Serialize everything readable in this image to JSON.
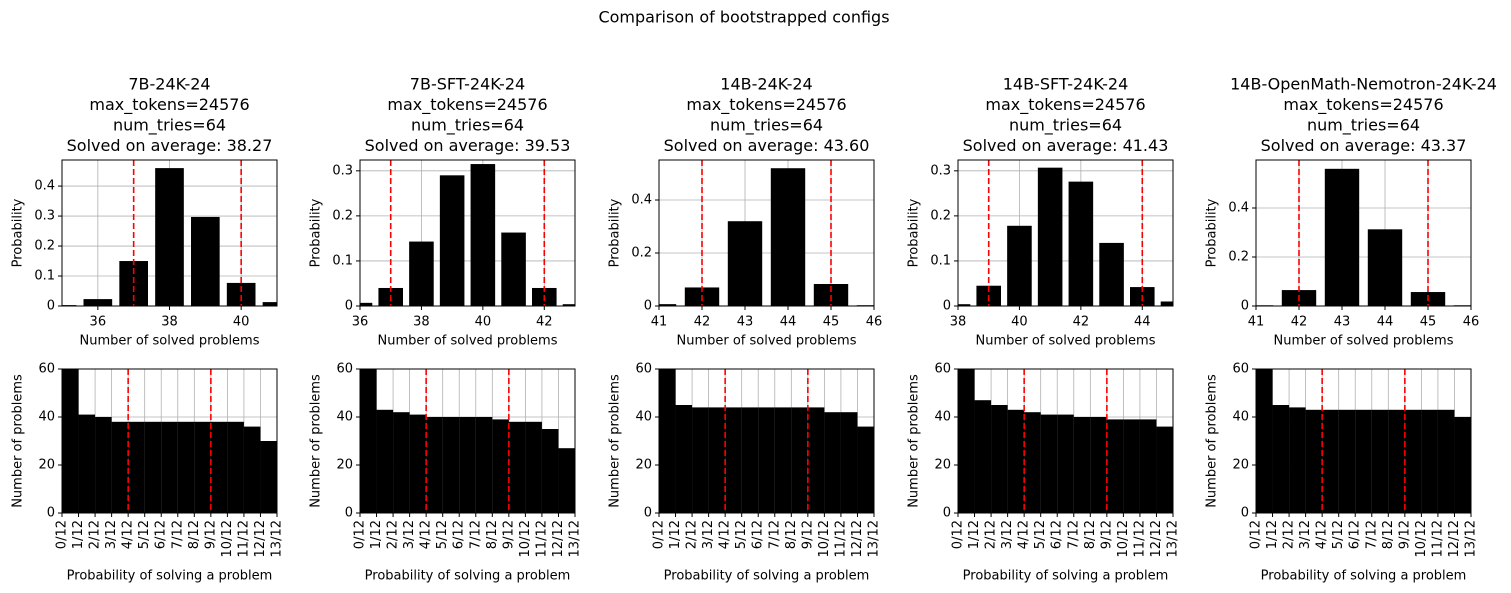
{
  "title": "Comparison of bootstrapped configs",
  "chart_data": [
    {
      "type": "bar",
      "title": [
        "7B-24K-24",
        "max_tokens=24576",
        "num_tries=64",
        "Solved on average: 38.27"
      ],
      "xlabel": "Number of solved problems",
      "ylabel": "Probability",
      "x": [
        35,
        36,
        37,
        38,
        39,
        40,
        41
      ],
      "values": [
        0.003,
        0.023,
        0.15,
        0.46,
        0.297,
        0.077,
        0.013
      ],
      "color": "#000000",
      "xlim": [
        35,
        41
      ],
      "xticks": [
        36,
        38,
        40
      ],
      "ylim": [
        0,
        0.487
      ],
      "yticks": [
        0.0,
        0.1,
        0.2,
        0.3,
        0.4
      ],
      "vlines": [
        37,
        40
      ],
      "vline_color": "#ff0000",
      "grid": true
    },
    {
      "type": "bar",
      "title": [
        "7B-SFT-24K-24",
        "max_tokens=24576",
        "num_tries=64",
        "Solved on average: 39.53"
      ],
      "xlabel": "Number of solved problems",
      "ylabel": "Probability",
      "x": [
        36,
        37,
        38,
        39,
        40,
        41,
        42,
        43
      ],
      "values": [
        0.007,
        0.04,
        0.143,
        0.29,
        0.315,
        0.163,
        0.04,
        0.004
      ],
      "color": "#000000",
      "xlim": [
        36,
        43
      ],
      "xticks": [
        36,
        38,
        40,
        42
      ],
      "ylim": [
        0,
        0.324
      ],
      "yticks": [
        0.0,
        0.1,
        0.2,
        0.3
      ],
      "vlines": [
        37,
        42
      ],
      "vline_color": "#ff0000",
      "grid": true
    },
    {
      "type": "bar",
      "title": [
        "14B-24K-24",
        "max_tokens=24576",
        "num_tries=64",
        "Solved on average: 43.60"
      ],
      "xlabel": "Number of solved problems",
      "ylabel": "Probability",
      "x": [
        41,
        42,
        43,
        44,
        45,
        46
      ],
      "values": [
        0.007,
        0.07,
        0.32,
        0.52,
        0.083,
        0.003
      ],
      "color": "#000000",
      "xlim": [
        41,
        46
      ],
      "xticks": [
        41,
        42,
        43,
        44,
        45,
        46
      ],
      "ylim": [
        0,
        0.551
      ],
      "yticks": [
        0.0,
        0.2,
        0.4
      ],
      "vlines": [
        42,
        45
      ],
      "vline_color": "#ff0000",
      "grid": true
    },
    {
      "type": "bar",
      "title": [
        "14B-SFT-24K-24",
        "max_tokens=24576",
        "num_tries=64",
        "Solved on average: 41.43"
      ],
      "xlabel": "Number of solved problems",
      "ylabel": "Probability",
      "x": [
        38,
        39,
        40,
        41,
        42,
        43,
        44,
        45
      ],
      "values": [
        0.004,
        0.045,
        0.178,
        0.307,
        0.276,
        0.14,
        0.042,
        0.01
      ],
      "color": "#000000",
      "xlim": [
        38,
        45
      ],
      "xticks": [
        38,
        40,
        42,
        44
      ],
      "ylim": [
        0,
        0.324
      ],
      "yticks": [
        0.0,
        0.1,
        0.2,
        0.3
      ],
      "vlines": [
        39,
        44
      ],
      "vline_color": "#ff0000",
      "grid": true
    },
    {
      "type": "bar",
      "title": [
        "14B-OpenMath-Nemotron-24K-24",
        "max_tokens=24576",
        "num_tries=64",
        "Solved on average: 43.37"
      ],
      "xlabel": "Number of solved problems",
      "ylabel": "Probability",
      "x": [
        41,
        42,
        43,
        44,
        45,
        46
      ],
      "values": [
        0.003,
        0.065,
        0.56,
        0.313,
        0.057,
        0.003
      ],
      "color": "#000000",
      "xlim": [
        41,
        46
      ],
      "xticks": [
        41,
        42,
        43,
        44,
        45,
        46
      ],
      "ylim": [
        0,
        0.596
      ],
      "yticks": [
        0.0,
        0.2,
        0.4
      ],
      "vlines": [
        42,
        45
      ],
      "vline_color": "#ff0000",
      "grid": true
    },
    {
      "type": "histogram",
      "xlabel": "Probability of solving a problem",
      "ylabel": "Number of problems",
      "bins": [
        0,
        1,
        2,
        3,
        4,
        5,
        6,
        7,
        8,
        9,
        10,
        11,
        12,
        13
      ],
      "values": [
        62,
        41,
        40,
        38,
        38,
        38,
        38,
        38,
        38,
        38,
        38,
        36,
        30
      ],
      "color": "#000000",
      "xlim": [
        0,
        13
      ],
      "xticks": [
        {
          "value": 0,
          "label": "0/12"
        },
        {
          "value": 1,
          "label": "1/12"
        },
        {
          "value": 2,
          "label": "2/12"
        },
        {
          "value": 3,
          "label": "3/12"
        },
        {
          "value": 4,
          "label": "4/12"
        },
        {
          "value": 5,
          "label": "5/12"
        },
        {
          "value": 6,
          "label": "6/12"
        },
        {
          "value": 7,
          "label": "7/12"
        },
        {
          "value": 8,
          "label": "8/12"
        },
        {
          "value": 9,
          "label": "9/12"
        },
        {
          "value": 10,
          "label": "10/12"
        },
        {
          "value": 11,
          "label": "11/12"
        },
        {
          "value": 12,
          "label": "12/12"
        },
        {
          "value": 13,
          "label": "13/12"
        }
      ],
      "ylim": [
        0,
        60
      ],
      "yticks": [
        0,
        20,
        40,
        60
      ],
      "vlines": [
        4,
        9
      ],
      "vline_color": "#ff0000",
      "grid": true
    },
    {
      "type": "histogram",
      "xlabel": "Probability of solving a problem",
      "ylabel": "Number of problems",
      "bins": [
        0,
        1,
        2,
        3,
        4,
        5,
        6,
        7,
        8,
        9,
        10,
        11,
        12,
        13
      ],
      "values": [
        62,
        43,
        42,
        41,
        40,
        40,
        40,
        40,
        39,
        38,
        38,
        35,
        27
      ],
      "color": "#000000",
      "xlim": [
        0,
        13
      ],
      "xticks": [
        {
          "value": 0,
          "label": "0/12"
        },
        {
          "value": 1,
          "label": "1/12"
        },
        {
          "value": 2,
          "label": "2/12"
        },
        {
          "value": 3,
          "label": "3/12"
        },
        {
          "value": 4,
          "label": "4/12"
        },
        {
          "value": 5,
          "label": "5/12"
        },
        {
          "value": 6,
          "label": "6/12"
        },
        {
          "value": 7,
          "label": "7/12"
        },
        {
          "value": 8,
          "label": "8/12"
        },
        {
          "value": 9,
          "label": "9/12"
        },
        {
          "value": 10,
          "label": "10/12"
        },
        {
          "value": 11,
          "label": "11/12"
        },
        {
          "value": 12,
          "label": "12/12"
        },
        {
          "value": 13,
          "label": "13/12"
        }
      ],
      "ylim": [
        0,
        60
      ],
      "yticks": [
        0,
        20,
        40,
        60
      ],
      "vlines": [
        4,
        9
      ],
      "vline_color": "#ff0000",
      "grid": true
    },
    {
      "type": "histogram",
      "xlabel": "Probability of solving a problem",
      "ylabel": "Number of problems",
      "bins": [
        0,
        1,
        2,
        3,
        4,
        5,
        6,
        7,
        8,
        9,
        10,
        11,
        12,
        13
      ],
      "values": [
        62,
        45,
        44,
        44,
        44,
        44,
        44,
        44,
        44,
        44,
        42,
        42,
        36
      ],
      "color": "#000000",
      "xlim": [
        0,
        13
      ],
      "xticks": [
        {
          "value": 0,
          "label": "0/12"
        },
        {
          "value": 1,
          "label": "1/12"
        },
        {
          "value": 2,
          "label": "2/12"
        },
        {
          "value": 3,
          "label": "3/12"
        },
        {
          "value": 4,
          "label": "4/12"
        },
        {
          "value": 5,
          "label": "5/12"
        },
        {
          "value": 6,
          "label": "6/12"
        },
        {
          "value": 7,
          "label": "7/12"
        },
        {
          "value": 8,
          "label": "8/12"
        },
        {
          "value": 9,
          "label": "9/12"
        },
        {
          "value": 10,
          "label": "10/12"
        },
        {
          "value": 11,
          "label": "11/12"
        },
        {
          "value": 12,
          "label": "12/12"
        },
        {
          "value": 13,
          "label": "13/12"
        }
      ],
      "ylim": [
        0,
        60
      ],
      "yticks": [
        0,
        20,
        40,
        60
      ],
      "vlines": [
        4,
        9
      ],
      "vline_color": "#ff0000",
      "grid": true
    },
    {
      "type": "histogram",
      "xlabel": "Probability of solving a problem",
      "ylabel": "Number of problems",
      "bins": [
        0,
        1,
        2,
        3,
        4,
        5,
        6,
        7,
        8,
        9,
        10,
        11,
        12,
        13
      ],
      "values": [
        62,
        47,
        45,
        43,
        42,
        41,
        41,
        40,
        40,
        39,
        39,
        39,
        36
      ],
      "color": "#000000",
      "xlim": [
        0,
        13
      ],
      "xticks": [
        {
          "value": 0,
          "label": "0/12"
        },
        {
          "value": 1,
          "label": "1/12"
        },
        {
          "value": 2,
          "label": "2/12"
        },
        {
          "value": 3,
          "label": "3/12"
        },
        {
          "value": 4,
          "label": "4/12"
        },
        {
          "value": 5,
          "label": "5/12"
        },
        {
          "value": 6,
          "label": "6/12"
        },
        {
          "value": 7,
          "label": "7/12"
        },
        {
          "value": 8,
          "label": "8/12"
        },
        {
          "value": 9,
          "label": "9/12"
        },
        {
          "value": 10,
          "label": "10/12"
        },
        {
          "value": 11,
          "label": "11/12"
        },
        {
          "value": 12,
          "label": "12/12"
        },
        {
          "value": 13,
          "label": "13/12"
        }
      ],
      "ylim": [
        0,
        60
      ],
      "yticks": [
        0,
        20,
        40,
        60
      ],
      "vlines": [
        4,
        9
      ],
      "vline_color": "#ff0000",
      "grid": true
    },
    {
      "type": "histogram",
      "xlabel": "Probability of solving a problem",
      "ylabel": "Number of problems",
      "bins": [
        0,
        1,
        2,
        3,
        4,
        5,
        6,
        7,
        8,
        9,
        10,
        11,
        12,
        13
      ],
      "values": [
        62,
        45,
        44,
        43,
        43,
        43,
        43,
        43,
        43,
        43,
        43,
        43,
        40
      ],
      "color": "#000000",
      "xlim": [
        0,
        13
      ],
      "xticks": [
        {
          "value": 0,
          "label": "0/12"
        },
        {
          "value": 1,
          "label": "1/12"
        },
        {
          "value": 2,
          "label": "2/12"
        },
        {
          "value": 3,
          "label": "3/12"
        },
        {
          "value": 4,
          "label": "4/12"
        },
        {
          "value": 5,
          "label": "5/12"
        },
        {
          "value": 6,
          "label": "6/12"
        },
        {
          "value": 7,
          "label": "7/12"
        },
        {
          "value": 8,
          "label": "8/12"
        },
        {
          "value": 9,
          "label": "9/12"
        },
        {
          "value": 10,
          "label": "10/12"
        },
        {
          "value": 11,
          "label": "11/12"
        },
        {
          "value": 12,
          "label": "12/12"
        },
        {
          "value": 13,
          "label": "13/12"
        }
      ],
      "ylim": [
        0,
        60
      ],
      "yticks": [
        0,
        20,
        40,
        60
      ],
      "vlines": [
        4,
        9
      ],
      "vline_color": "#ff0000",
      "grid": true
    }
  ]
}
